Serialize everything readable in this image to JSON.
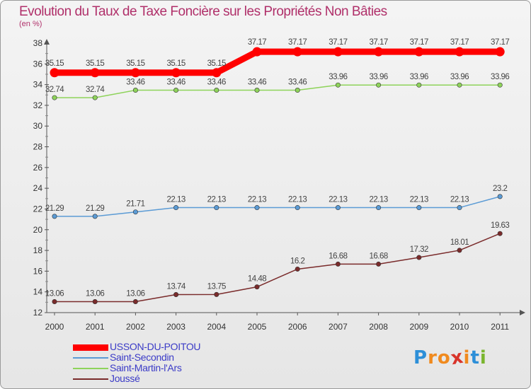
{
  "header": {
    "title": "Evolution du Taux de Taxe Foncière sur les Propriétés Non Bâties",
    "unit": "(en %)"
  },
  "logo": {
    "letters": [
      "P",
      "r",
      "o",
      "x",
      "i",
      "t",
      "i"
    ],
    "colors": [
      "#2d8fd8",
      "#f08a1e",
      "#f08a1e",
      "#d8342a",
      "#f08a1e",
      "#2d8fd8",
      "#7ab52e"
    ]
  },
  "chart_data": {
    "type": "line",
    "title": "Evolution du Taux de Taxe Foncière sur les Propriétés Non Bâties",
    "ylabel": "(en %)",
    "xlabel": "",
    "ylim": [
      12,
      38
    ],
    "yticks": [
      12,
      14,
      16,
      18,
      20,
      22,
      24,
      26,
      28,
      30,
      32,
      34,
      36,
      38
    ],
    "categories": [
      "2000",
      "2001",
      "2002",
      "2003",
      "2004",
      "2005",
      "2006",
      "2007",
      "2008",
      "2009",
      "2010",
      "2011"
    ],
    "series": [
      {
        "name": "USSON-DU-POITOU",
        "color": "#ff0000",
        "weight": "thick",
        "values": [
          35.15,
          35.15,
          35.15,
          35.15,
          35.15,
          37.17,
          37.17,
          37.17,
          37.17,
          37.17,
          37.17,
          37.17
        ],
        "labels": [
          "35.15",
          "35.15",
          "35.15",
          "35.15",
          "35.15",
          "37.17",
          "37.17",
          "37.17",
          "37.17",
          "37.17",
          "37.17",
          "37.17"
        ]
      },
      {
        "name": "Saint-Secondin",
        "color": "#5b9bd5",
        "weight": "thin",
        "values": [
          21.29,
          21.29,
          21.71,
          22.13,
          22.13,
          22.13,
          22.13,
          22.13,
          22.13,
          22.13,
          22.13,
          23.2
        ],
        "labels": [
          "21.29",
          "21.29",
          "21.71",
          "22.13",
          "22.13",
          "22.13",
          "22.13",
          "22.13",
          "22.13",
          "22.13",
          "22.13",
          "23.2"
        ]
      },
      {
        "name": "Saint-Martin-l'Ars",
        "color": "#8ed35a",
        "weight": "thin",
        "values": [
          32.74,
          32.74,
          33.46,
          33.46,
          33.46,
          33.46,
          33.46,
          33.96,
          33.96,
          33.96,
          33.96,
          33.96
        ],
        "labels": [
          "32.74",
          "32.74",
          "33.46",
          "33.46",
          "33.46",
          "33.46",
          "33.46",
          "33.96",
          "33.96",
          "33.96",
          "33.96",
          "33.96"
        ]
      },
      {
        "name": "Joussé",
        "color": "#7a2b2b",
        "weight": "thin",
        "values": [
          13.06,
          13.06,
          13.06,
          13.74,
          13.75,
          14.48,
          16.2,
          16.68,
          16.68,
          17.32,
          18.01,
          19.63
        ],
        "labels": [
          "13.06",
          "13.06",
          "13.06",
          "13.74",
          "13.75",
          "14.48",
          "16.2",
          "16.68",
          "16.68",
          "17.32",
          "18.01",
          "19.63"
        ]
      }
    ],
    "legend": "bottom-left",
    "grid": false
  }
}
